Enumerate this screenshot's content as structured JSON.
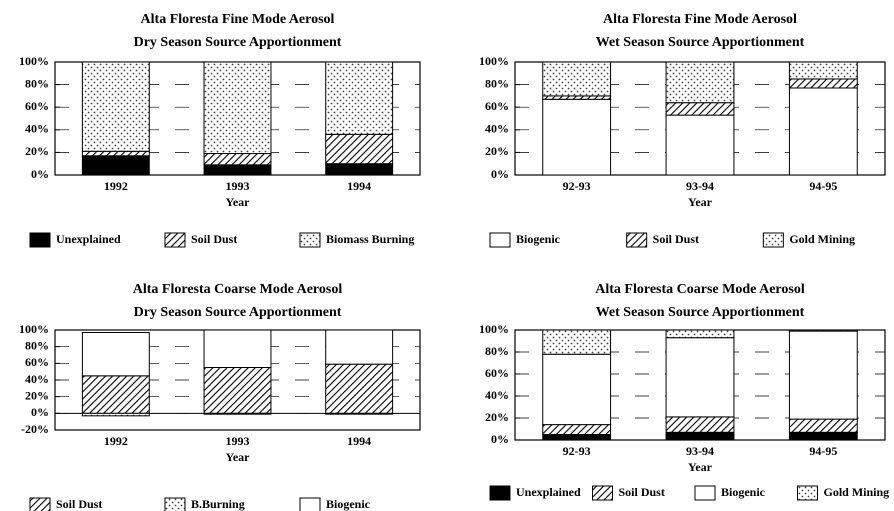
{
  "chart_data": [
    {
      "type": "bar",
      "stacked": true,
      "title": "Alta Floresta Fine Mode Aerosol",
      "subtitle": "Dry Season Source Apportionment",
      "x_label": "Year",
      "categories": [
        "1992",
        "1993",
        "1994"
      ],
      "series": [
        {
          "name": "Unexplained",
          "color": "#000000",
          "pattern": "solid",
          "values": [
            17,
            9,
            10
          ]
        },
        {
          "name": "Soil Dust",
          "color": "#000000",
          "pattern": "hatch",
          "values": [
            4,
            10,
            26
          ]
        },
        {
          "name": "Biomass Burning",
          "color": "#000000",
          "pattern": "dots",
          "values": [
            79,
            81,
            64
          ]
        }
      ],
      "ylim": [
        0,
        100
      ],
      "yticks": [
        {
          "value": 0,
          "label": "0%"
        },
        {
          "value": 20,
          "label": "20%"
        },
        {
          "value": 40,
          "label": "40%"
        },
        {
          "value": 60,
          "label": "60%"
        },
        {
          "value": 80,
          "label": "80%"
        },
        {
          "value": 100,
          "label": "100%"
        }
      ],
      "grid": true
    },
    {
      "type": "bar",
      "stacked": true,
      "title": "Alta Floresta Fine Mode Aerosol",
      "subtitle": "Wet Season Source Apportionment",
      "x_label": "Year",
      "categories": [
        "92-93",
        "93-94",
        "94-95"
      ],
      "series": [
        {
          "name": "Biogenic",
          "color": "#000000",
          "pattern": "empty",
          "values": [
            67,
            53,
            77
          ]
        },
        {
          "name": "Soil Dust",
          "color": "#000000",
          "pattern": "hatch",
          "values": [
            3,
            11,
            8
          ]
        },
        {
          "name": "Gold Mining",
          "color": "#000000",
          "pattern": "dots",
          "values": [
            30,
            36,
            15
          ]
        }
      ],
      "ylim": [
        0,
        100
      ],
      "yticks": [
        {
          "value": 0,
          "label": "0%"
        },
        {
          "value": 20,
          "label": "20%"
        },
        {
          "value": 40,
          "label": "40%"
        },
        {
          "value": 60,
          "label": "60%"
        },
        {
          "value": 80,
          "label": "80%"
        },
        {
          "value": 100,
          "label": "100%"
        }
      ],
      "grid": true
    },
    {
      "type": "bar",
      "stacked": true,
      "title": "Alta Floresta Coarse Mode Aerosol",
      "subtitle": "Dry Season Source Apportionment",
      "x_label": "Year",
      "categories": [
        "1992",
        "1993",
        "1994"
      ],
      "series": [
        {
          "name": "Soil Dust",
          "color": "#000000",
          "pattern": "hatch",
          "values": [
            45,
            55,
            59
          ]
        },
        {
          "name": "B.Burning",
          "color": "#000000",
          "pattern": "dots",
          "values": [
            -3,
            -1,
            -1
          ]
        },
        {
          "name": "Biogenic",
          "color": "#000000",
          "pattern": "empty",
          "values": [
            52,
            45,
            41
          ]
        }
      ],
      "ylim": [
        -20,
        100
      ],
      "yticks": [
        {
          "value": -20,
          "label": "-20%"
        },
        {
          "value": 0,
          "label": "0%"
        },
        {
          "value": 20,
          "label": "20%"
        },
        {
          "value": 40,
          "label": "40%"
        },
        {
          "value": 60,
          "label": "60%"
        },
        {
          "value": 80,
          "label": "80%"
        },
        {
          "value": 100,
          "label": "100%"
        }
      ],
      "grid": true
    },
    {
      "type": "bar",
      "stacked": true,
      "title": "Alta Floresta Coarse Mode Aerosol",
      "subtitle": "Wet Season Source Apportionment",
      "x_label": "Year",
      "categories": [
        "92-93",
        "93-94",
        "94-95"
      ],
      "series": [
        {
          "name": "Unexplained",
          "color": "#000000",
          "pattern": "solid",
          "values": [
            5,
            7,
            7
          ]
        },
        {
          "name": "Soil Dust",
          "color": "#000000",
          "pattern": "hatch",
          "values": [
            9,
            14,
            12
          ]
        },
        {
          "name": "Biogenic",
          "color": "#000000",
          "pattern": "empty",
          "values": [
            64,
            72,
            80
          ]
        },
        {
          "name": "Gold Mining",
          "color": "#000000",
          "pattern": "dots",
          "values": [
            22,
            7,
            1
          ]
        }
      ],
      "ylim": [
        0,
        100
      ],
      "yticks": [
        {
          "value": 0,
          "label": "0%"
        },
        {
          "value": 20,
          "label": "20%"
        },
        {
          "value": 40,
          "label": "40%"
        },
        {
          "value": 60,
          "label": "60%"
        },
        {
          "value": 80,
          "label": "80%"
        },
        {
          "value": 100,
          "label": "100%"
        }
      ],
      "grid": true
    }
  ]
}
